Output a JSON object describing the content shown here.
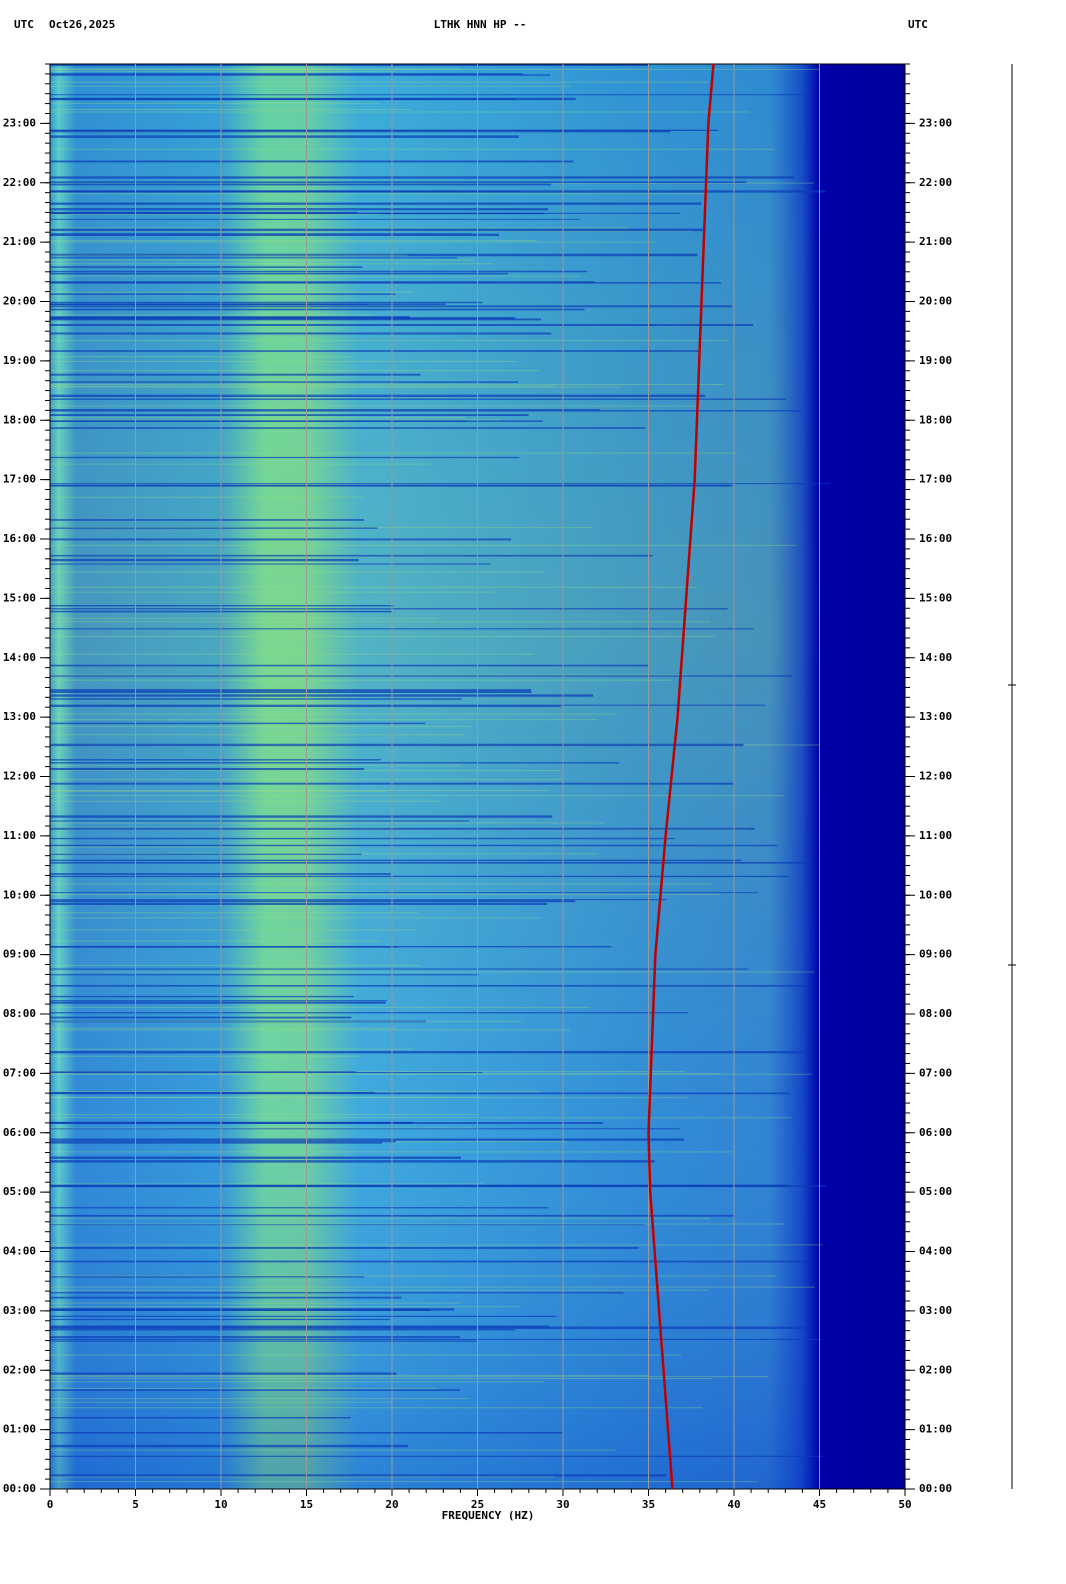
{
  "chart_data": {
    "type": "spectrogram",
    "title": "LTHK HNN HP --",
    "date": "Oct26,2025",
    "timezone_left": "UTC",
    "timezone_right": "UTC",
    "xlabel": "FREQUENCY (HZ)",
    "xlim": [
      0,
      50
    ],
    "xticks": [
      0,
      5,
      10,
      15,
      20,
      25,
      30,
      35,
      40,
      45,
      50
    ],
    "ylim": [
      0,
      24
    ],
    "yticks": [
      {
        "value": 0,
        "label": "00:00"
      },
      {
        "value": 1,
        "label": "01:00"
      },
      {
        "value": 2,
        "label": "02:00"
      },
      {
        "value": 3,
        "label": "03:00"
      },
      {
        "value": 4,
        "label": "04:00"
      },
      {
        "value": 5,
        "label": "05:00"
      },
      {
        "value": 6,
        "label": "06:00"
      },
      {
        "value": 7,
        "label": "07:00"
      },
      {
        "value": 8,
        "label": "08:00"
      },
      {
        "value": 9,
        "label": "09:00"
      },
      {
        "value": 10,
        "label": "10:00"
      },
      {
        "value": 11,
        "label": "11:00"
      },
      {
        "value": 12,
        "label": "12:00"
      },
      {
        "value": 13,
        "label": "13:00"
      },
      {
        "value": 14,
        "label": "14:00"
      },
      {
        "value": 15,
        "label": "15:00"
      },
      {
        "value": 16,
        "label": "16:00"
      },
      {
        "value": 17,
        "label": "17:00"
      },
      {
        "value": 18,
        "label": "18:00"
      },
      {
        "value": 19,
        "label": "19:00"
      },
      {
        "value": 20,
        "label": "20:00"
      },
      {
        "value": 21,
        "label": "21:00"
      },
      {
        "value": 22,
        "label": "22:00"
      },
      {
        "value": 23,
        "label": "23:00"
      }
    ],
    "grid": true,
    "series": [
      {
        "color": "#c00000",
        "x": [
          36.4,
          35.1,
          35.0,
          35.4,
          36.0,
          36.7,
          37.2,
          37.7,
          38.1,
          38.5,
          38.8
        ],
        "values": [
          0,
          5,
          6,
          9,
          11,
          13,
          15,
          17,
          20,
          23,
          24
        ]
      }
    ]
  }
}
